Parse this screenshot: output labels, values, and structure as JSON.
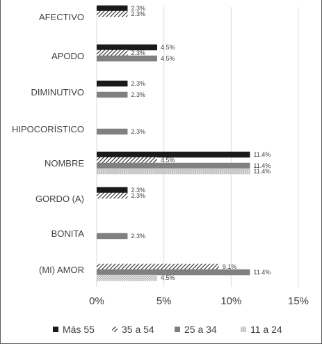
{
  "chart_data": {
    "type": "bar",
    "orientation": "horizontal",
    "categories": [
      "AFECTIVO",
      "APODO",
      "DIMINUTIVO",
      "HIPOCORÍSTICO",
      "NOMBRE",
      "GORDO (A)",
      "BONITA",
      "(MI) AMOR"
    ],
    "category_display": [
      "Afectivo",
      "Apodo",
      "Diminutivo",
      "Hipocorístico",
      "Nombre",
      "Gordo (a)",
      "Bonita",
      "(Mi) amor"
    ],
    "series": [
      {
        "name": "Más 55",
        "values": [
          2.3,
          4.5,
          2.3,
          null,
          11.4,
          2.3,
          null,
          null
        ],
        "labels": [
          "2.3%",
          "4.5%",
          "2.3%",
          "",
          "11.4%",
          "2.3%",
          "",
          ""
        ],
        "pattern": "solid-dark"
      },
      {
        "name": "35 a 54",
        "values": [
          2.3,
          2.3,
          null,
          null,
          4.5,
          2.3,
          null,
          9.1
        ],
        "labels": [
          "2.3%",
          "2.3%",
          "",
          "",
          "4.5%",
          "2.3%",
          "",
          "9.1%"
        ],
        "pattern": "diagonal-hatch"
      },
      {
        "name": "25 a 34",
        "values": [
          null,
          4.5,
          2.3,
          2.3,
          11.4,
          null,
          2.3,
          11.4
        ],
        "labels": [
          "",
          "4.5%",
          "2.3%",
          "2.3%",
          "11.4%",
          "",
          "2.3%",
          "11.4%"
        ],
        "pattern": "solid-gray"
      },
      {
        "name": "11 a 24",
        "values": [
          null,
          null,
          null,
          null,
          11.4,
          null,
          null,
          4.5
        ],
        "labels": [
          "",
          "",
          "",
          "",
          "11.4%",
          "",
          "",
          "4.5%"
        ],
        "pattern": "dotted"
      }
    ],
    "xlim": [
      0,
      15
    ],
    "xticks": [
      0,
      5,
      10,
      15
    ],
    "xtick_labels": [
      "0%",
      "5%",
      "10%",
      "15%"
    ],
    "grid": "vertical",
    "legend_position": "bottom",
    "colors": {
      "dark": "#1a1a1a",
      "gray": "#808080",
      "dotted": "#c8c8c8",
      "grid": "#d9d9d9",
      "text": "#404040"
    }
  }
}
